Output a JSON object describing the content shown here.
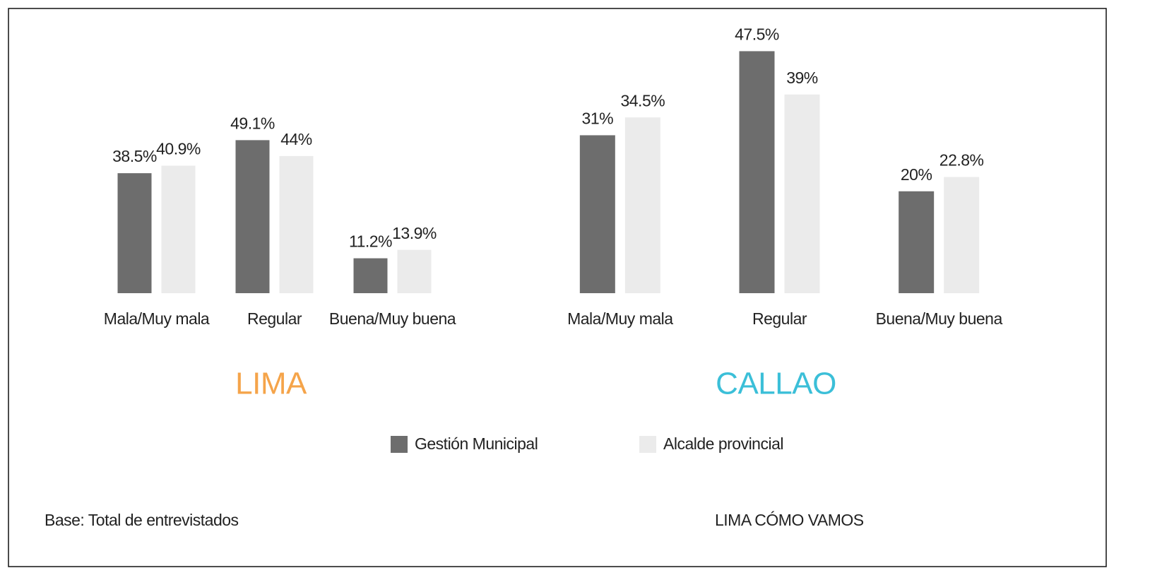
{
  "chart_data": [
    {
      "type": "bar",
      "title": "LIMA",
      "title_color": "#f5a44a",
      "categories": [
        "Mala/Muy mala",
        "Regular",
        "Buena/Muy buena"
      ],
      "series": [
        {
          "name": "Gestión Municipal",
          "color": "#6d6d6d",
          "values": [
            38.5,
            49.1,
            11.2
          ],
          "value_labels": [
            "38.5%",
            "49.1%",
            "11.2%"
          ]
        },
        {
          "name": "Alcalde provincial",
          "color": "#ebebeb",
          "values": [
            40.9,
            44,
            13.9
          ],
          "value_labels": [
            "40.9%",
            "44%",
            "13.9%"
          ]
        }
      ],
      "ylim": [
        0,
        85
      ]
    },
    {
      "type": "bar",
      "title": "CALLAO",
      "title_color": "#3bbfd8",
      "categories": [
        "Mala/Muy mala",
        "Regular",
        "Buena/Muy buena"
      ],
      "series": [
        {
          "name": "Gestión Municipal",
          "color": "#6d6d6d",
          "values": [
            31,
            47.5,
            20
          ],
          "value_labels": [
            "31%",
            "47.5%",
            "20%"
          ]
        },
        {
          "name": "Alcalde provincial",
          "color": "#ebebeb",
          "values": [
            34.5,
            39,
            22.8
          ],
          "value_labels": [
            "34.5%",
            "39%",
            "22.8%"
          ]
        }
      ],
      "ylim": [
        0,
        52
      ]
    }
  ],
  "footnote": "Base: Total de entrevistados",
  "source": "LIMA CÓMO VAMOS"
}
